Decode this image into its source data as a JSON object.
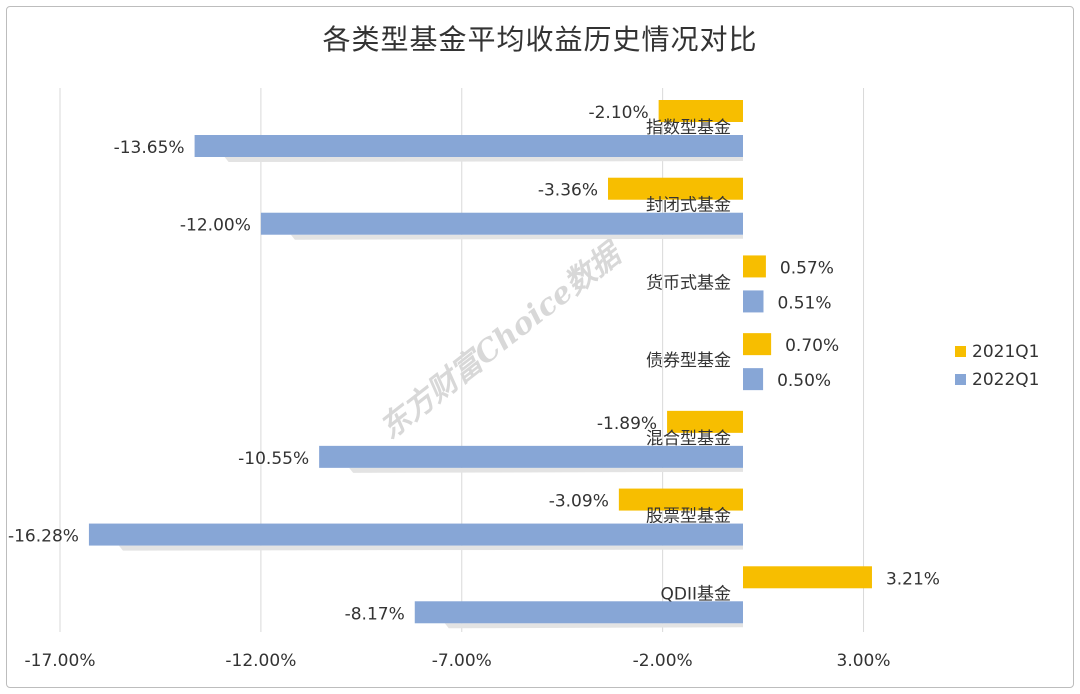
{
  "chart_data": {
    "type": "bar",
    "orientation": "horizontal",
    "title": "各类型基金平均收益历史情况对比",
    "categories": [
      "指数型基金",
      "封闭式基金",
      "货币式基金",
      "债券型基金",
      "混合型基金",
      "股票型基金",
      "QDII基金"
    ],
    "series": [
      {
        "name": "2021Q1",
        "color": "#f7be00",
        "values": [
          -2.1,
          -3.36,
          0.57,
          0.7,
          -1.89,
          -3.09,
          3.21
        ],
        "labels": [
          "-2.10%",
          "-3.36%",
          "0.57%",
          "0.70%",
          "-1.89%",
          "-3.09%",
          "3.21%"
        ]
      },
      {
        "name": "2022Q1",
        "color": "#87a6d6",
        "values": [
          -13.65,
          -12.0,
          0.51,
          0.5,
          -10.55,
          -16.28,
          -8.17
        ],
        "labels": [
          "-13.65%",
          "-12.00%",
          "0.51%",
          "0.50%",
          "-10.55%",
          "-16.28%",
          "-8.17%"
        ]
      }
    ],
    "xlim": [
      -17,
      5
    ],
    "xticks": [
      -17,
      -12,
      -7,
      -2,
      3
    ],
    "xtick_labels": [
      "-17.00%",
      "-12.00%",
      "-7.00%",
      "-2.00%",
      "3.00%"
    ],
    "grid": true,
    "legend": "right"
  },
  "watermark": "东方财富Choice数据"
}
